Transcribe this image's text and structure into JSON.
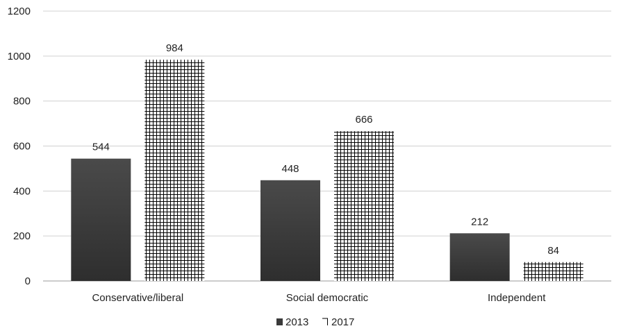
{
  "chart_data": {
    "type": "bar",
    "categories": [
      "Conservative/liberal",
      "Social democratic",
      "Independent"
    ],
    "series": [
      {
        "name": "2013",
        "values": [
          544,
          448,
          212
        ],
        "color": "#3a3a3a",
        "pattern": "solid"
      },
      {
        "name": "2017",
        "values": [
          984,
          666,
          84
        ],
        "color": "#000000",
        "pattern": "grid"
      }
    ],
    "ylim": [
      0,
      1200
    ],
    "yticks": [
      0,
      200,
      400,
      600,
      800,
      1000,
      1200
    ],
    "grid": true,
    "legend_position": "bottom-center",
    "title": "",
    "xlabel": "",
    "ylabel": ""
  }
}
